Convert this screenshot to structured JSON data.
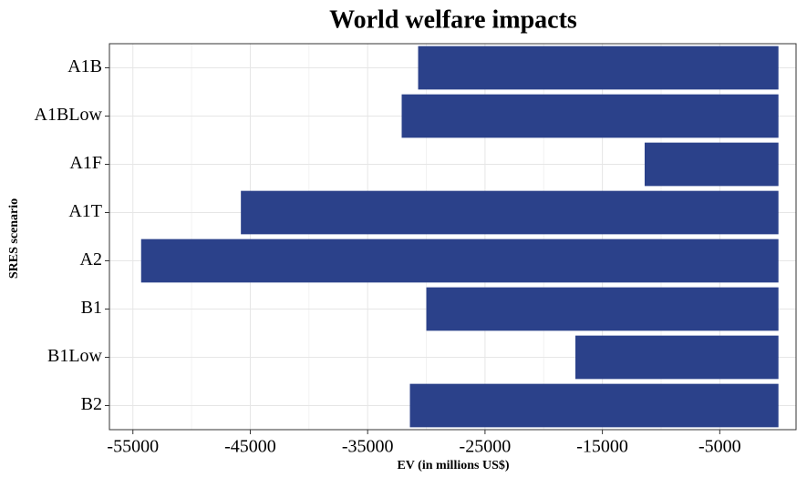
{
  "chart_data": {
    "type": "barh",
    "title": "World welfare impacts",
    "x_label": "EV (in millions US$)",
    "y_label": "SRES scenario",
    "categories": [
      "A1B",
      "A1BLow",
      "A1F",
      "A1T",
      "A2",
      "B1",
      "B1Low",
      "B2"
    ],
    "values": [
      -30700,
      -32100,
      -11400,
      -45800,
      -54300,
      -30000,
      -17300,
      -31400
    ],
    "color": "#2b418a",
    "xlim": [
      -57000,
      1500
    ],
    "xticks": [
      -55000,
      -45000,
      -35000,
      -25000,
      -15000,
      -5000
    ],
    "grid": true
  }
}
